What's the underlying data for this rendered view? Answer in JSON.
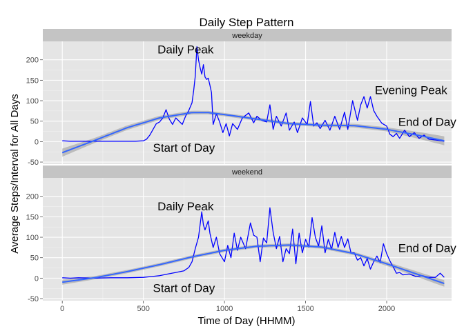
{
  "chart_data": {
    "type": "line",
    "title": "Daily Step Pattern",
    "xlabel": "Time of Day (HHMM)",
    "ylabel": "Average Steps/Interval for All Days",
    "xlim": [
      -120,
      2400
    ],
    "ylim": [
      -55,
      245
    ],
    "x_ticks": [
      0,
      500,
      1000,
      1500,
      2000
    ],
    "y_ticks": [
      -50,
      0,
      50,
      100,
      150,
      200
    ],
    "grid": true,
    "colors": {
      "line": "#0000ff",
      "smooth": "#3366ff",
      "ribbon": "#999999",
      "panel_bg": "#e5e5e5",
      "strip_bg": "#c4c4c4",
      "grid": "#ffffff"
    },
    "panels": [
      {
        "facet": "weekday",
        "line": [
          [
            0,
            2
          ],
          [
            50,
            1
          ],
          [
            100,
            1
          ],
          [
            200,
            1
          ],
          [
            300,
            1
          ],
          [
            400,
            1
          ],
          [
            450,
            1
          ],
          [
            500,
            2
          ],
          [
            520,
            6
          ],
          [
            540,
            16
          ],
          [
            560,
            30
          ],
          [
            580,
            44
          ],
          [
            600,
            48
          ],
          [
            620,
            58
          ],
          [
            640,
            78
          ],
          [
            660,
            55
          ],
          [
            680,
            42
          ],
          [
            700,
            58
          ],
          [
            720,
            50
          ],
          [
            740,
            42
          ],
          [
            760,
            62
          ],
          [
            780,
            76
          ],
          [
            800,
            95
          ],
          [
            810,
            125
          ],
          [
            820,
            160
          ],
          [
            830,
            232
          ],
          [
            840,
            200
          ],
          [
            850,
            180
          ],
          [
            860,
            165
          ],
          [
            870,
            188
          ],
          [
            880,
            158
          ],
          [
            890,
            152
          ],
          [
            900,
            155
          ],
          [
            910,
            138
          ],
          [
            920,
            120
          ],
          [
            930,
            42
          ],
          [
            950,
            68
          ],
          [
            970,
            48
          ],
          [
            990,
            22
          ],
          [
            1010,
            44
          ],
          [
            1030,
            14
          ],
          [
            1050,
            44
          ],
          [
            1080,
            30
          ],
          [
            1110,
            58
          ],
          [
            1150,
            70
          ],
          [
            1180,
            46
          ],
          [
            1200,
            62
          ],
          [
            1230,
            52
          ],
          [
            1260,
            48
          ],
          [
            1280,
            90
          ],
          [
            1300,
            30
          ],
          [
            1320,
            62
          ],
          [
            1350,
            38
          ],
          [
            1380,
            70
          ],
          [
            1400,
            28
          ],
          [
            1430,
            48
          ],
          [
            1450,
            22
          ],
          [
            1480,
            58
          ],
          [
            1510,
            42
          ],
          [
            1530,
            98
          ],
          [
            1550,
            38
          ],
          [
            1570,
            46
          ],
          [
            1590,
            32
          ],
          [
            1620,
            52
          ],
          [
            1650,
            28
          ],
          [
            1680,
            62
          ],
          [
            1710,
            30
          ],
          [
            1740,
            72
          ],
          [
            1760,
            30
          ],
          [
            1790,
            100
          ],
          [
            1820,
            52
          ],
          [
            1840,
            90
          ],
          [
            1860,
            110
          ],
          [
            1880,
            82
          ],
          [
            1900,
            110
          ],
          [
            1920,
            76
          ],
          [
            1940,
            62
          ],
          [
            1970,
            45
          ],
          [
            2000,
            38
          ],
          [
            2020,
            18
          ],
          [
            2040,
            12
          ],
          [
            2060,
            20
          ],
          [
            2080,
            8
          ],
          [
            2110,
            28
          ],
          [
            2140,
            12
          ],
          [
            2170,
            22
          ],
          [
            2200,
            8
          ],
          [
            2230,
            16
          ],
          [
            2260,
            6
          ],
          [
            2300,
            4
          ],
          [
            2355,
            1
          ]
        ],
        "smooth": [
          [
            0,
            -27
          ],
          [
            200,
            3
          ],
          [
            400,
            34
          ],
          [
            600,
            58
          ],
          [
            800,
            71
          ],
          [
            900,
            71
          ],
          [
            1000,
            66
          ],
          [
            1200,
            55
          ],
          [
            1400,
            44
          ],
          [
            1600,
            40
          ],
          [
            1800,
            39
          ],
          [
            2000,
            30
          ],
          [
            2200,
            15
          ],
          [
            2355,
            2
          ]
        ],
        "ribbon_halfwidth": [
          [
            0,
            10
          ],
          [
            200,
            6
          ],
          [
            600,
            5
          ],
          [
            1000,
            4
          ],
          [
            1600,
            4
          ],
          [
            2000,
            5
          ],
          [
            2355,
            11
          ]
        ],
        "annotations": [
          {
            "text": "Daily Peak",
            "x": 760,
            "y": 225
          },
          {
            "text": "Start of Day",
            "x": 750,
            "y": -15
          },
          {
            "text": "Evening Peak",
            "x": 2150,
            "y": 125
          },
          {
            "text": "End of Day",
            "x": 2250,
            "y": 48
          }
        ]
      },
      {
        "facet": "weekend",
        "line": [
          [
            0,
            1
          ],
          [
            50,
            0
          ],
          [
            100,
            1
          ],
          [
            200,
            0
          ],
          [
            300,
            1
          ],
          [
            400,
            1
          ],
          [
            500,
            2
          ],
          [
            550,
            4
          ],
          [
            600,
            6
          ],
          [
            650,
            10
          ],
          [
            700,
            14
          ],
          [
            750,
            18
          ],
          [
            780,
            26
          ],
          [
            800,
            40
          ],
          [
            820,
            72
          ],
          [
            840,
            100
          ],
          [
            860,
            162
          ],
          [
            870,
            130
          ],
          [
            880,
            118
          ],
          [
            900,
            140
          ],
          [
            910,
            110
          ],
          [
            930,
            75
          ],
          [
            950,
            100
          ],
          [
            970,
            60
          ],
          [
            1000,
            40
          ],
          [
            1020,
            80
          ],
          [
            1040,
            50
          ],
          [
            1060,
            110
          ],
          [
            1080,
            68
          ],
          [
            1100,
            100
          ],
          [
            1130,
            72
          ],
          [
            1160,
            135
          ],
          [
            1180,
            105
          ],
          [
            1200,
            100
          ],
          [
            1220,
            40
          ],
          [
            1240,
            98
          ],
          [
            1260,
            86
          ],
          [
            1280,
            172
          ],
          [
            1300,
            112
          ],
          [
            1320,
            72
          ],
          [
            1340,
            102
          ],
          [
            1360,
            40
          ],
          [
            1380,
            72
          ],
          [
            1400,
            60
          ],
          [
            1420,
            120
          ],
          [
            1440,
            35
          ],
          [
            1460,
            110
          ],
          [
            1480,
            62
          ],
          [
            1500,
            95
          ],
          [
            1520,
            76
          ],
          [
            1540,
            148
          ],
          [
            1560,
            100
          ],
          [
            1580,
            78
          ],
          [
            1600,
            128
          ],
          [
            1620,
            62
          ],
          [
            1640,
            95
          ],
          [
            1660,
            70
          ],
          [
            1680,
            112
          ],
          [
            1700,
            75
          ],
          [
            1720,
            102
          ],
          [
            1740,
            75
          ],
          [
            1760,
            96
          ],
          [
            1780,
            62
          ],
          [
            1800,
            62
          ],
          [
            1820,
            44
          ],
          [
            1840,
            50
          ],
          [
            1860,
            30
          ],
          [
            1880,
            48
          ],
          [
            1900,
            22
          ],
          [
            1920,
            40
          ],
          [
            1940,
            54
          ],
          [
            1960,
            38
          ],
          [
            1980,
            84
          ],
          [
            2000,
            60
          ],
          [
            2020,
            42
          ],
          [
            2040,
            28
          ],
          [
            2060,
            12
          ],
          [
            2080,
            14
          ],
          [
            2100,
            8
          ],
          [
            2140,
            10
          ],
          [
            2180,
            4
          ],
          [
            2220,
            6
          ],
          [
            2260,
            2
          ],
          [
            2300,
            2
          ],
          [
            2330,
            12
          ],
          [
            2355,
            2
          ]
        ],
        "smooth": [
          [
            0,
            -10
          ],
          [
            200,
            1
          ],
          [
            400,
            16
          ],
          [
            600,
            33
          ],
          [
            800,
            52
          ],
          [
            1000,
            68
          ],
          [
            1200,
            78
          ],
          [
            1400,
            81
          ],
          [
            1600,
            76
          ],
          [
            1800,
            60
          ],
          [
            2000,
            35
          ],
          [
            2200,
            8
          ],
          [
            2355,
            -13
          ]
        ],
        "ribbon_halfwidth": [
          [
            0,
            6
          ],
          [
            200,
            4
          ],
          [
            600,
            4
          ],
          [
            1000,
            4
          ],
          [
            1400,
            4
          ],
          [
            1800,
            4
          ],
          [
            2000,
            5
          ],
          [
            2355,
            8
          ]
        ],
        "annotations": [
          {
            "text": "Daily Peak",
            "x": 760,
            "y": 175
          },
          {
            "text": "Start of Day",
            "x": 750,
            "y": -25
          },
          {
            "text": "End of Day",
            "x": 2250,
            "y": 73
          }
        ]
      }
    ]
  }
}
